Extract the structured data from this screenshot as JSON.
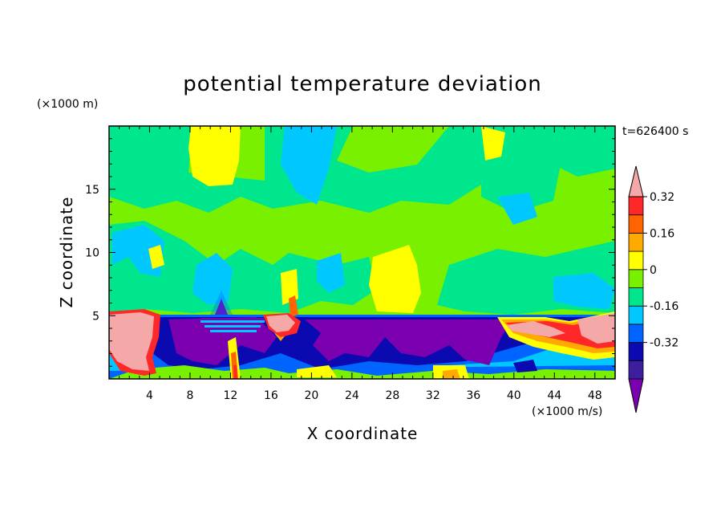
{
  "chart_data": {
    "type": "heatmap",
    "title": "potential temperature deviation",
    "xlabel": "X coordinate",
    "ylabel": "Z coordinate",
    "x_unit": "(×1000 m/s)",
    "y_unit": "(×1000 m)",
    "time_label": "t=626400 s",
    "xlim": [
      0,
      50
    ],
    "ylim": [
      0,
      20
    ],
    "x_ticks": [
      4,
      8,
      12,
      16,
      20,
      24,
      28,
      32,
      36,
      40,
      44,
      48
    ],
    "y_ticks": [
      5,
      10,
      15
    ],
    "colorbar": {
      "levels": [
        -0.48,
        -0.4,
        -0.32,
        -0.24,
        -0.16,
        -0.08,
        0,
        0.08,
        0.16,
        0.24,
        0.32,
        0.4
      ],
      "colors": [
        "#7a00b0",
        "#3c1e9e",
        "#0a0ab0",
        "#0064ff",
        "#00c8ff",
        "#00e68c",
        "#78f000",
        "#ffff00",
        "#ffaa00",
        "#ff6400",
        "#ff2828",
        "#f5a8a8"
      ],
      "tick_labels": [
        "0.32",
        "0.16",
        "0",
        "-0.16",
        "-0.32"
      ],
      "tick_values": [
        0.32,
        0.16,
        0,
        -0.16,
        -0.32
      ]
    },
    "description_fields": {
      "upper_region": "mostly values between -0.08 and 0.08 with patches of 0.08 to 0.16 and -0.16 to -0.08",
      "lower_region_below_z_5km": "strong negative values down to below -0.4 with warm positive blobs above 0.4 near x=0-4 and x=40-50"
    }
  }
}
